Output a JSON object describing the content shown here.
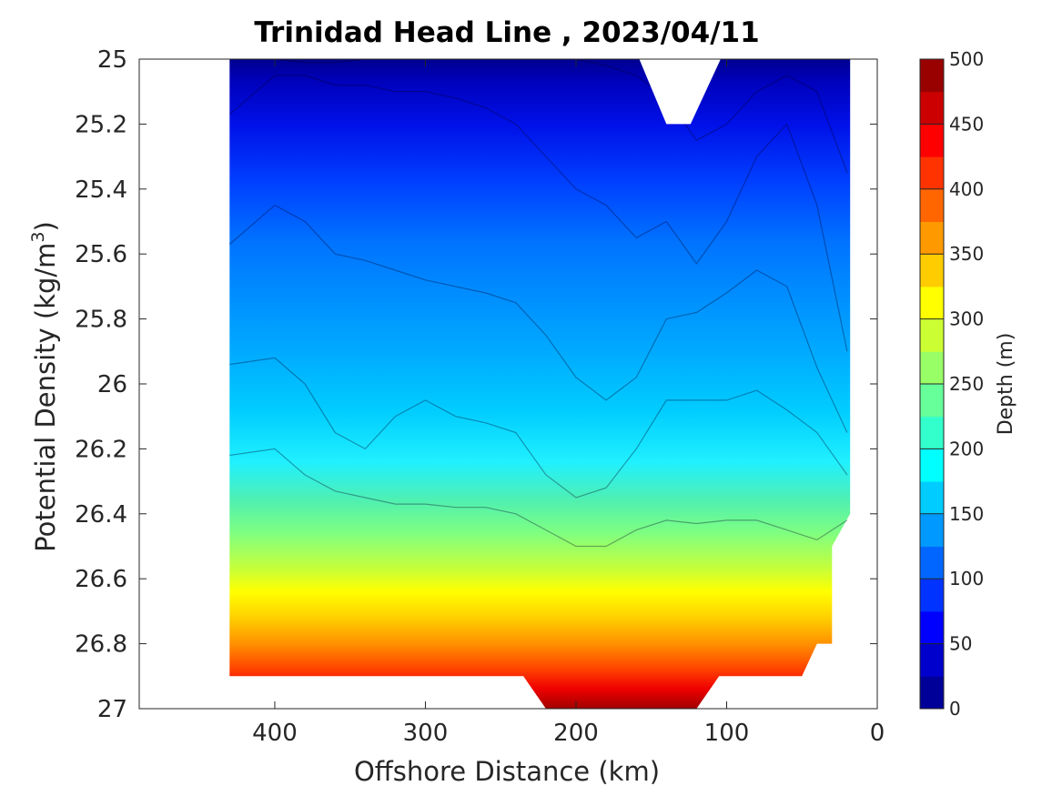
{
  "chart_data": {
    "type": "contour",
    "title": "Trinidad Head Line , 2023/04/11",
    "xlabel": "Offshore Distance (km)",
    "ylabel_main": "Potential Density (kg/m",
    "ylabel_sup": "3",
    "ylabel_close": ")",
    "xlim": [
      490,
      0
    ],
    "x_reversed": true,
    "ylim": [
      25,
      27
    ],
    "y_reversed": true,
    "x_ticks": [
      400,
      300,
      200,
      100,
      0
    ],
    "x_tick_labels": [
      "400",
      "300",
      "200",
      "100",
      "0"
    ],
    "y_ticks": [
      25,
      25.2,
      25.4,
      25.6,
      25.8,
      26,
      26.2,
      26.4,
      26.6,
      26.8,
      27
    ],
    "y_tick_labels": [
      "25",
      "25.2",
      "25.4",
      "25.6",
      "25.8",
      "26",
      "26.2",
      "26.4",
      "26.6",
      "26.8",
      "27"
    ],
    "colorbar": {
      "label": "Depth (m)",
      "range": [
        0,
        500
      ],
      "ticks": [
        0,
        50,
        100,
        150,
        200,
        250,
        300,
        350,
        400,
        450,
        500
      ],
      "tick_labels": [
        "0",
        "50",
        "100",
        "150",
        "200",
        "250",
        "300",
        "350",
        "400",
        "450",
        "500"
      ],
      "level_step": 25,
      "colormap": "jet"
    },
    "data_extent": {
      "x": [
        18,
        430
      ],
      "y": [
        25,
        26.9
      ],
      "deep_trough_x": [
        120,
        220
      ],
      "deep_trough_y": 27,
      "nearshore_cutoff": [
        [
          30,
          26.5
        ],
        [
          30,
          26.8
        ],
        [
          40,
          26.8
        ],
        [
          50,
          26.9
        ]
      ],
      "missing_gap_top": [
        [
          158,
          25
        ],
        [
          140,
          25.2
        ],
        [
          124,
          25.2
        ],
        [
          104,
          25
        ]
      ]
    },
    "depth_contours": [
      {
        "depth": 25,
        "x": [
          430,
          400,
          380,
          360,
          340,
          320,
          300,
          280,
          260,
          240,
          220,
          200,
          180,
          160,
          140,
          120,
          100,
          80,
          60,
          40,
          20
        ],
        "y": [
          25.0,
          25.0,
          25.01,
          25.01,
          25.0,
          25.0,
          25.0,
          25.0,
          25.0,
          25.0,
          25.0,
          25.0,
          25.02,
          25.05,
          25.12,
          25.25,
          25.2,
          25.1,
          25.05,
          25.1,
          25.35
        ]
      },
      {
        "depth": 50,
        "x": [
          430,
          400,
          380,
          360,
          340,
          320,
          300,
          280,
          260,
          240,
          220,
          200,
          180,
          160,
          140,
          120,
          100,
          80,
          60,
          40,
          20
        ],
        "y": [
          25.17,
          25.05,
          25.05,
          25.08,
          25.08,
          25.1,
          25.1,
          25.12,
          25.15,
          25.2,
          25.3,
          25.4,
          25.45,
          25.55,
          25.5,
          25.63,
          25.5,
          25.3,
          25.2,
          25.45,
          25.9
        ]
      },
      {
        "depth": 75,
        "x": [
          430,
          400,
          380,
          360,
          340,
          320,
          300,
          280,
          260,
          240,
          220,
          200,
          180,
          160,
          140,
          120,
          100,
          80,
          60,
          40,
          20
        ],
        "y": [
          25.57,
          25.45,
          25.5,
          25.6,
          25.62,
          25.65,
          25.68,
          25.7,
          25.72,
          25.75,
          25.85,
          25.98,
          26.05,
          25.98,
          25.8,
          25.78,
          25.72,
          25.65,
          25.7,
          25.95,
          26.15
        ]
      },
      {
        "depth": 100,
        "x": [
          430,
          400,
          380,
          360,
          340,
          320,
          300,
          280,
          260,
          240,
          220,
          200,
          180,
          160,
          140,
          120,
          100,
          80,
          60,
          40,
          20
        ],
        "y": [
          25.94,
          25.92,
          26.0,
          26.15,
          26.2,
          26.1,
          26.05,
          26.1,
          26.12,
          26.15,
          26.28,
          26.35,
          26.32,
          26.2,
          26.05,
          26.05,
          26.05,
          26.02,
          26.08,
          26.15,
          26.28
        ]
      },
      {
        "depth": 125,
        "x": [
          430,
          400,
          380,
          360,
          340,
          320,
          300,
          280,
          260,
          240,
          220,
          200,
          180,
          160,
          140,
          120,
          100,
          80,
          60,
          40,
          20
        ],
        "y": [
          26.22,
          26.2,
          26.28,
          26.33,
          26.35,
          26.37,
          26.37,
          26.38,
          26.38,
          26.4,
          26.45,
          26.5,
          26.5,
          26.45,
          26.42,
          26.43,
          26.42,
          26.42,
          26.45,
          26.48,
          26.42
        ]
      }
    ]
  }
}
